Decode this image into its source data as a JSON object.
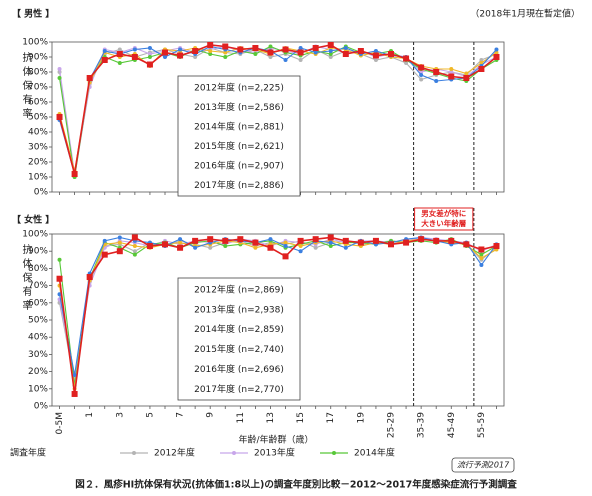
{
  "note": "（2018年1月現在暫定値）",
  "legend_title": "調査年度",
  "logo": "流行予測2017",
  "figure_caption": "図２．風疹HI抗体保有状況(抗体価1:8以上)の調査年度別比較－2012～2017年度感染症流行予測調査",
  "chart_data": [
    {
      "type": "line",
      "panel_label": "【 男性 】",
      "ylabel": "抗体保有率",
      "categories": [
        "0-5M",
        null,
        "1",
        null,
        "3",
        null,
        "5",
        null,
        "7",
        null,
        "9",
        null,
        "11",
        null,
        "13",
        null,
        "15",
        null,
        "17",
        null,
        "19",
        null,
        "25-29",
        null,
        "35-39",
        null,
        "45-49",
        null,
        "55-59",
        null
      ],
      "ylim": [
        0,
        100
      ],
      "yticks": [
        {
          "value": 0,
          "label": "0%"
        },
        {
          "value": 10,
          "label": "10%"
        },
        {
          "value": 20,
          "label": "20%"
        },
        {
          "value": 30,
          "label": "30%"
        },
        {
          "value": 40,
          "label": "40%"
        },
        {
          "value": 50,
          "label": "50%"
        },
        {
          "value": 60,
          "label": "60%"
        },
        {
          "value": 70,
          "label": "70%"
        },
        {
          "value": 80,
          "label": "80%"
        },
        {
          "value": 90,
          "label": "90%"
        },
        {
          "value": 100,
          "label": "100%"
        }
      ],
      "n_labels": [
        "2012年度 (n=2,225)",
        "2013年度 (n=2,586)",
        "2014年度 (n=2,881)",
        "2015年度 (n=2,621)",
        "2016年度 (n=2,907)",
        "2017年度 (n=2,886)"
      ],
      "series": [
        {
          "name": "2012年度",
          "color": "#b4b4b4",
          "marker": "circle",
          "values": [
            80,
            10,
            72,
            92,
            95,
            90,
            93,
            95,
            92,
            90,
            96,
            93,
            92,
            95,
            90,
            92,
            88,
            95,
            90,
            94,
            92,
            88,
            90,
            86,
            75,
            78,
            80,
            78,
            88,
            92
          ]
        },
        {
          "name": "2013年度",
          "color": "#c8a6ea",
          "marker": "circle",
          "values": [
            82,
            12,
            70,
            95,
            93,
            96,
            92,
            94,
            96,
            93,
            95,
            97,
            94,
            93,
            96,
            94,
            92,
            97,
            95,
            93,
            94,
            90,
            92,
            90,
            80,
            82,
            80,
            77,
            85,
            90
          ]
        },
        {
          "name": "2014年度",
          "color": "#58c838",
          "marker": "circle",
          "values": [
            76,
            10,
            74,
            90,
            86,
            88,
            90,
            93,
            90,
            95,
            92,
            90,
            94,
            92,
            97,
            93,
            91,
            94,
            92,
            97,
            93,
            92,
            94,
            88,
            82,
            79,
            76,
            74,
            82,
            88
          ]
        },
        {
          "name": "2015年度",
          "color": "#f0b828",
          "marker": "circle",
          "values": [
            52,
            14,
            73,
            93,
            90,
            92,
            84,
            95,
            94,
            96,
            94,
            93,
            96,
            95,
            92,
            96,
            94,
            92,
            96,
            95,
            91,
            93,
            90,
            89,
            84,
            82,
            82,
            79,
            86,
            93
          ]
        },
        {
          "name": "2016年度",
          "color": "#3a7fe0",
          "marker": "circle",
          "values": [
            48,
            12,
            75,
            94,
            92,
            95,
            96,
            90,
            95,
            92,
            97,
            95,
            93,
            96,
            94,
            88,
            96,
            93,
            94,
            96,
            92,
            94,
            91,
            90,
            78,
            74,
            75,
            76,
            84,
            95
          ]
        },
        {
          "name": "2017年度",
          "color": "#e02020",
          "marker": "square",
          "values": [
            50,
            12,
            76,
            88,
            92,
            90,
            85,
            93,
            91,
            94,
            98,
            97,
            95,
            96,
            93,
            95,
            93,
            96,
            98,
            92,
            94,
            91,
            92,
            89,
            83,
            80,
            77,
            76,
            82,
            90
          ]
        }
      ]
    },
    {
      "type": "line",
      "panel_label": "【 女性 】",
      "ylabel": "抗体保有率",
      "xlabel": "年齢/年齢群（歳）",
      "annotation": [
        "男女差が特に",
        "大きい年齢層"
      ],
      "categories": [
        "0-5M",
        null,
        "1",
        null,
        "3",
        null,
        "5",
        null,
        "7",
        null,
        "9",
        null,
        "11",
        null,
        "13",
        null,
        "15",
        null,
        "17",
        null,
        "19",
        null,
        "25-29",
        null,
        "35-39",
        null,
        "45-49",
        null,
        "55-59",
        null
      ],
      "ylim": [
        0,
        100
      ],
      "yticks": [
        {
          "value": 0,
          "label": "0%"
        },
        {
          "value": 10,
          "label": "10%"
        },
        {
          "value": 20,
          "label": "20%"
        },
        {
          "value": 30,
          "label": "30%"
        },
        {
          "value": 40,
          "label": "40%"
        },
        {
          "value": 50,
          "label": "50%"
        },
        {
          "value": 60,
          "label": "60%"
        },
        {
          "value": 70,
          "label": "70%"
        },
        {
          "value": 80,
          "label": "80%"
        },
        {
          "value": 90,
          "label": "90%"
        },
        {
          "value": 100,
          "label": "100%"
        }
      ],
      "n_labels": [
        "2012年度 (n=2,869)",
        "2013年度 (n=2,938)",
        "2014年度 (n=2,859)",
        "2015年度 (n=2,740)",
        "2016年度 (n=2,696)",
        "2017年度 (n=2,770)"
      ],
      "series": [
        {
          "name": "2012年度",
          "color": "#b4b4b4",
          "marker": "circle",
          "values": [
            60,
            14,
            72,
            93,
            94,
            90,
            95,
            93,
            96,
            94,
            92,
            95,
            96,
            93,
            95,
            94,
            96,
            92,
            95,
            96,
            94,
            95,
            96,
            95,
            97,
            96,
            95,
            94,
            85,
            92
          ]
        },
        {
          "name": "2013年度",
          "color": "#c8a6ea",
          "marker": "circle",
          "values": [
            62,
            16,
            70,
            92,
            96,
            95,
            93,
            96,
            94,
            96,
            95,
            94,
            97,
            96,
            93,
            96,
            95,
            94,
            97,
            95,
            96,
            96,
            95,
            96,
            98,
            97,
            96,
            95,
            90,
            94
          ]
        },
        {
          "name": "2014年度",
          "color": "#58c838",
          "marker": "circle",
          "values": [
            85,
            12,
            74,
            95,
            92,
            88,
            94,
            95,
            92,
            95,
            96,
            93,
            94,
            95,
            96,
            92,
            94,
            96,
            93,
            95,
            95,
            94,
            96,
            95,
            96,
            95,
            97,
            93,
            88,
            93
          ]
        },
        {
          "name": "2015年度",
          "color": "#f0b828",
          "marker": "circle",
          "values": [
            70,
            10,
            73,
            94,
            95,
            93,
            92,
            94,
            95,
            93,
            94,
            96,
            95,
            92,
            94,
            95,
            93,
            95,
            96,
            94,
            93,
            95,
            94,
            96,
            97,
            96,
            95,
            94,
            86,
            91
          ]
        },
        {
          "name": "2016年度",
          "color": "#3a7fe0",
          "marker": "circle",
          "values": [
            65,
            18,
            77,
            96,
            98,
            96,
            95,
            93,
            97,
            92,
            95,
            97,
            96,
            95,
            97,
            93,
            90,
            96,
            95,
            92,
            96,
            94,
            95,
            97,
            98,
            96,
            94,
            95,
            82,
            94
          ]
        },
        {
          "name": "2017年度",
          "color": "#e02020",
          "marker": "square",
          "values": [
            74,
            7,
            75,
            88,
            90,
            98,
            93,
            94,
            92,
            96,
            97,
            96,
            97,
            95,
            92,
            87,
            96,
            97,
            98,
            96,
            95,
            96,
            94,
            95,
            97,
            96,
            96,
            94,
            91,
            93
          ]
        }
      ]
    }
  ]
}
